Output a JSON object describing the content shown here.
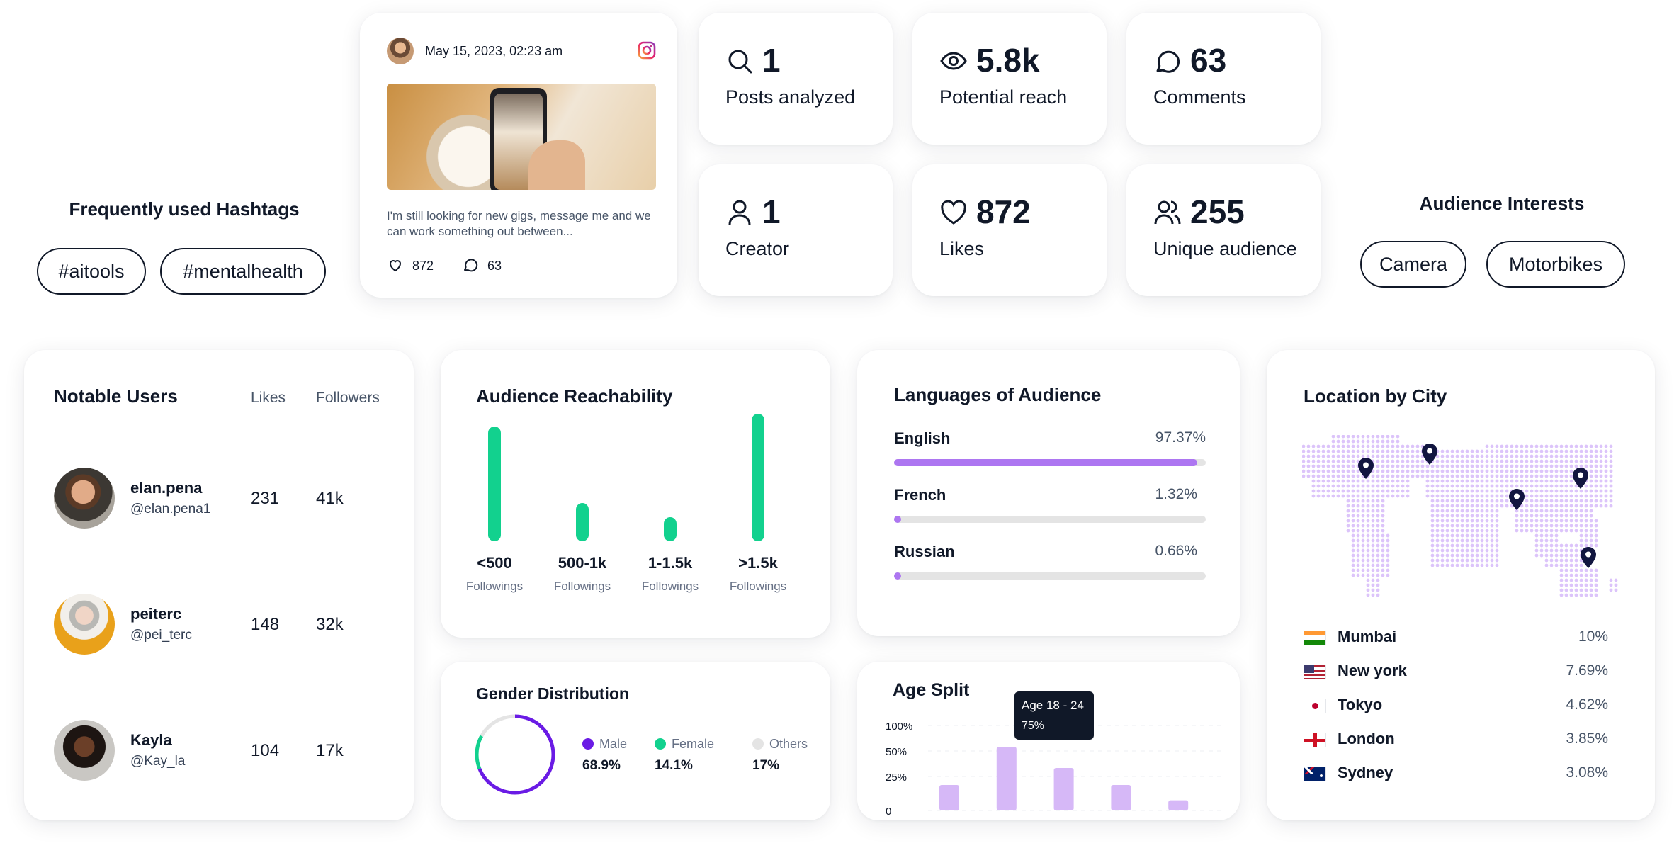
{
  "hashtags": {
    "title": "Frequently used Hashtags",
    "items": [
      "#aitools",
      "#mentalhealth"
    ]
  },
  "post": {
    "date": "May 15, 2023, 02:23 am",
    "caption": "I'm still looking for new gigs, message me and we can work something out between...",
    "likes": "872",
    "comments": "63"
  },
  "stats": {
    "posts": {
      "value": "1",
      "label": "Posts analyzed"
    },
    "reach": {
      "value": "5.8k",
      "label": "Potential reach"
    },
    "comments": {
      "value": "63",
      "label": "Comments"
    },
    "creator": {
      "value": "1",
      "label": "Creator"
    },
    "likes": {
      "value": "872",
      "label": "Likes"
    },
    "unique": {
      "value": "255",
      "label": "Unique audience"
    }
  },
  "interests": {
    "title": "Audience Interests",
    "items": [
      "Camera",
      "Motorbikes"
    ]
  },
  "notable_users": {
    "title": "Notable Users",
    "col_likes": "Likes",
    "col_followers": "Followers",
    "rows": [
      {
        "name": "elan.pena",
        "handle": "@elan.pena1",
        "likes": "231",
        "followers": "41k"
      },
      {
        "name": "peiterc",
        "handle": "@pei_terc",
        "likes": "148",
        "followers": "32k"
      },
      {
        "name": "Kayla",
        "handle": "@Kay_la",
        "likes": "104",
        "followers": "17k"
      }
    ]
  },
  "reachability": {
    "title": "Audience Reachability",
    "bars": [
      {
        "label": "<500",
        "sub": "Followings",
        "level": 0.9
      },
      {
        "label": "500-1k",
        "sub": "Followings",
        "level": 0.3
      },
      {
        "label": "1-1.5k",
        "sub": "Followings",
        "level": 0.19
      },
      {
        "label": ">1.5k",
        "sub": "Followings",
        "level": 1.0
      }
    ],
    "bar_color": "#12d18e"
  },
  "languages": {
    "title": "Languages of Audience",
    "items": [
      {
        "name": "English",
        "pct": "97.37%",
        "value": 97.37
      },
      {
        "name": "French",
        "pct": "1.32%",
        "value": 1.32
      },
      {
        "name": "Russian",
        "pct": "0.66%",
        "value": 0.66
      }
    ],
    "color": "#ad76f1"
  },
  "gender": {
    "title": "Gender Distribution",
    "items": [
      {
        "name": "Male",
        "pct": "68.9%",
        "value": 68.9,
        "color": "#6a1be5"
      },
      {
        "name": "Female",
        "pct": "14.1%",
        "value": 14.1,
        "color": "#12d18e"
      },
      {
        "name": "Others",
        "pct": "17%",
        "value": 17,
        "color": "#e4e4e4"
      }
    ]
  },
  "age_split": {
    "title": "Age Split",
    "tooltip_title": "Age 18 - 24",
    "tooltip_value": "75%",
    "y_ticks": [
      "100%",
      "50%",
      "25%",
      "0"
    ],
    "chart_data": {
      "type": "bar",
      "categories": [
        "",
        "Age 18 - 24",
        "",
        "",
        ""
      ],
      "values": [
        30,
        75,
        50,
        30,
        12
      ],
      "ylim": [
        0,
        100
      ],
      "color": "#d6b8f7"
    }
  },
  "location": {
    "title": "Location by City",
    "cities": [
      {
        "name": "Mumbai",
        "pct": "10%",
        "flag": "india"
      },
      {
        "name": "New york",
        "pct": "7.69%",
        "flag": "usa"
      },
      {
        "name": "Tokyo",
        "pct": "4.62%",
        "flag": "japan"
      },
      {
        "name": "London",
        "pct": "3.85%",
        "flag": "england"
      },
      {
        "name": "Sydney",
        "pct": "3.08%",
        "flag": "australia"
      }
    ]
  }
}
